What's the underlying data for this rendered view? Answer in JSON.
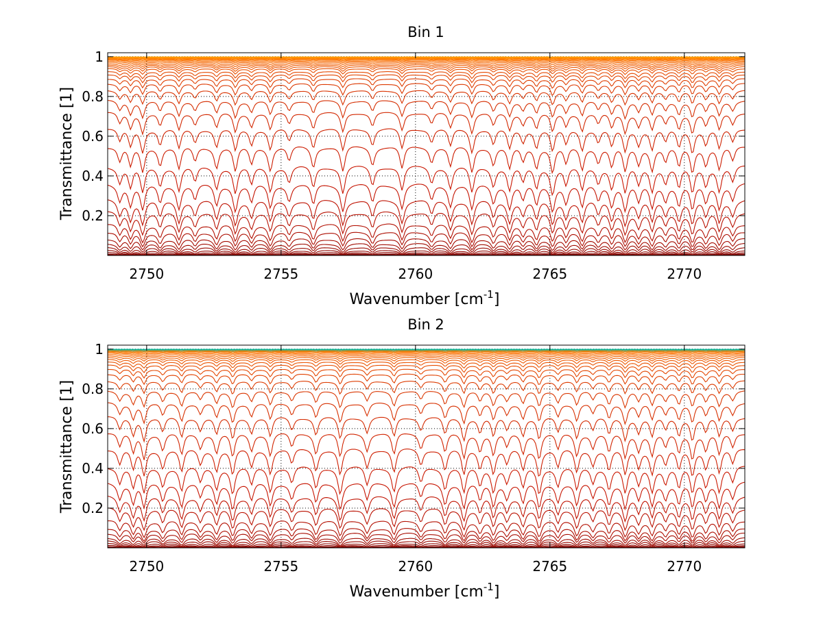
{
  "chart_data": [
    {
      "type": "line",
      "title": "Bin 1",
      "xlabel": "Wavenumber [cm-1]",
      "xlabel_main": "Wavenumber [cm",
      "xlabel_sup": "-1",
      "xlabel_close": "]",
      "ylabel": "Transmittance [1]",
      "xlim": [
        2748.55,
        2772.25
      ],
      "ylim": [
        0.0,
        1.02
      ],
      "xticks": [
        2750,
        2755,
        2760,
        2765,
        2770
      ],
      "xtick_labels": [
        "2750",
        "2755",
        "2760",
        "2765",
        "2770"
      ],
      "yticks": [
        0.2,
        0.4,
        0.6,
        0.8,
        1
      ],
      "ytick_labels": [
        "0.2",
        "0.4",
        "0.6",
        "0.8",
        "1"
      ],
      "grid": true,
      "colormap": "hot (dark red at low transmittance to orange/yellow near 1)",
      "absorption_lines_cm1": [
        2749.0,
        2749.4,
        2749.85,
        2750.5,
        2751.2,
        2751.8,
        2752.6,
        2753.3,
        2753.9,
        2754.6,
        2755.3,
        2756.2,
        2757.3,
        2758.4,
        2759.5,
        2760.6,
        2761.3,
        2762.1,
        2762.9,
        2763.5,
        2764.0,
        2764.5,
        2765.1,
        2765.6,
        2766.2,
        2766.8,
        2767.3,
        2767.8,
        2768.3,
        2768.8,
        2769.3,
        2769.8,
        2770.3,
        2770.8,
        2771.3,
        2771.8
      ],
      "series_levels": [
        0.001,
        0.004,
        0.008,
        0.015,
        0.025,
        0.04,
        0.06,
        0.085,
        0.12,
        0.16,
        0.22,
        0.28,
        0.36,
        0.45,
        0.55,
        0.64,
        0.72,
        0.78,
        0.83,
        0.865,
        0.89,
        0.91,
        0.925,
        0.94,
        0.95,
        0.958,
        0.965,
        0.972,
        0.978,
        0.983,
        0.987,
        0.99,
        0.993,
        0.995,
        0.997,
        0.998,
        0.999
      ],
      "colors": {
        "dark": "#7a0000",
        "mid": "#c81400",
        "light": "#ff7a00",
        "top": "#ffa000"
      }
    },
    {
      "type": "line",
      "title": "Bin 2",
      "xlabel": "Wavenumber [cm-1]",
      "xlabel_main": "Wavenumber [cm",
      "xlabel_sup": "-1",
      "xlabel_close": "]",
      "ylabel": "Transmittance [1]",
      "xlim": [
        2748.55,
        2772.25
      ],
      "ylim": [
        0.0,
        1.02
      ],
      "xticks": [
        2750,
        2755,
        2760,
        2765,
        2770
      ],
      "xtick_labels": [
        "2750",
        "2755",
        "2760",
        "2765",
        "2770"
      ],
      "yticks": [
        0.2,
        0.4,
        0.6,
        0.8,
        1
      ],
      "ytick_labels": [
        "0.2",
        "0.4",
        "0.6",
        "0.8",
        "1"
      ],
      "grid": true,
      "colormap": "hot (dark red at low transmittance to orange/yellow near 1)",
      "absorption_lines_cm1": [
        2749.0,
        2749.5,
        2749.9,
        2750.6,
        2751.3,
        2752.0,
        2752.6,
        2753.2,
        2753.9,
        2754.6,
        2755.4,
        2756.3,
        2757.2,
        2758.2,
        2759.2,
        2760.2,
        2761.1,
        2761.8,
        2762.4,
        2762.9,
        2763.4,
        2764.0,
        2764.6,
        2765.3,
        2766.0,
        2766.6,
        2767.2,
        2767.8,
        2768.3,
        2768.8,
        2769.3,
        2769.8,
        2770.3,
        2770.8,
        2771.3,
        2771.8
      ],
      "series_levels": [
        0.001,
        0.003,
        0.007,
        0.013,
        0.022,
        0.035,
        0.05,
        0.075,
        0.1,
        0.14,
        0.2,
        0.26,
        0.33,
        0.41,
        0.5,
        0.58,
        0.66,
        0.73,
        0.79,
        0.84,
        0.875,
        0.9,
        0.92,
        0.935,
        0.948,
        0.958,
        0.966,
        0.973,
        0.979,
        0.984,
        0.988,
        0.991,
        0.994,
        0.996,
        0.998,
        0.999
      ],
      "colors": {
        "dark": "#7a0000",
        "mid": "#c81400",
        "light": "#ff7a00",
        "top": "#00b8a0"
      }
    }
  ]
}
